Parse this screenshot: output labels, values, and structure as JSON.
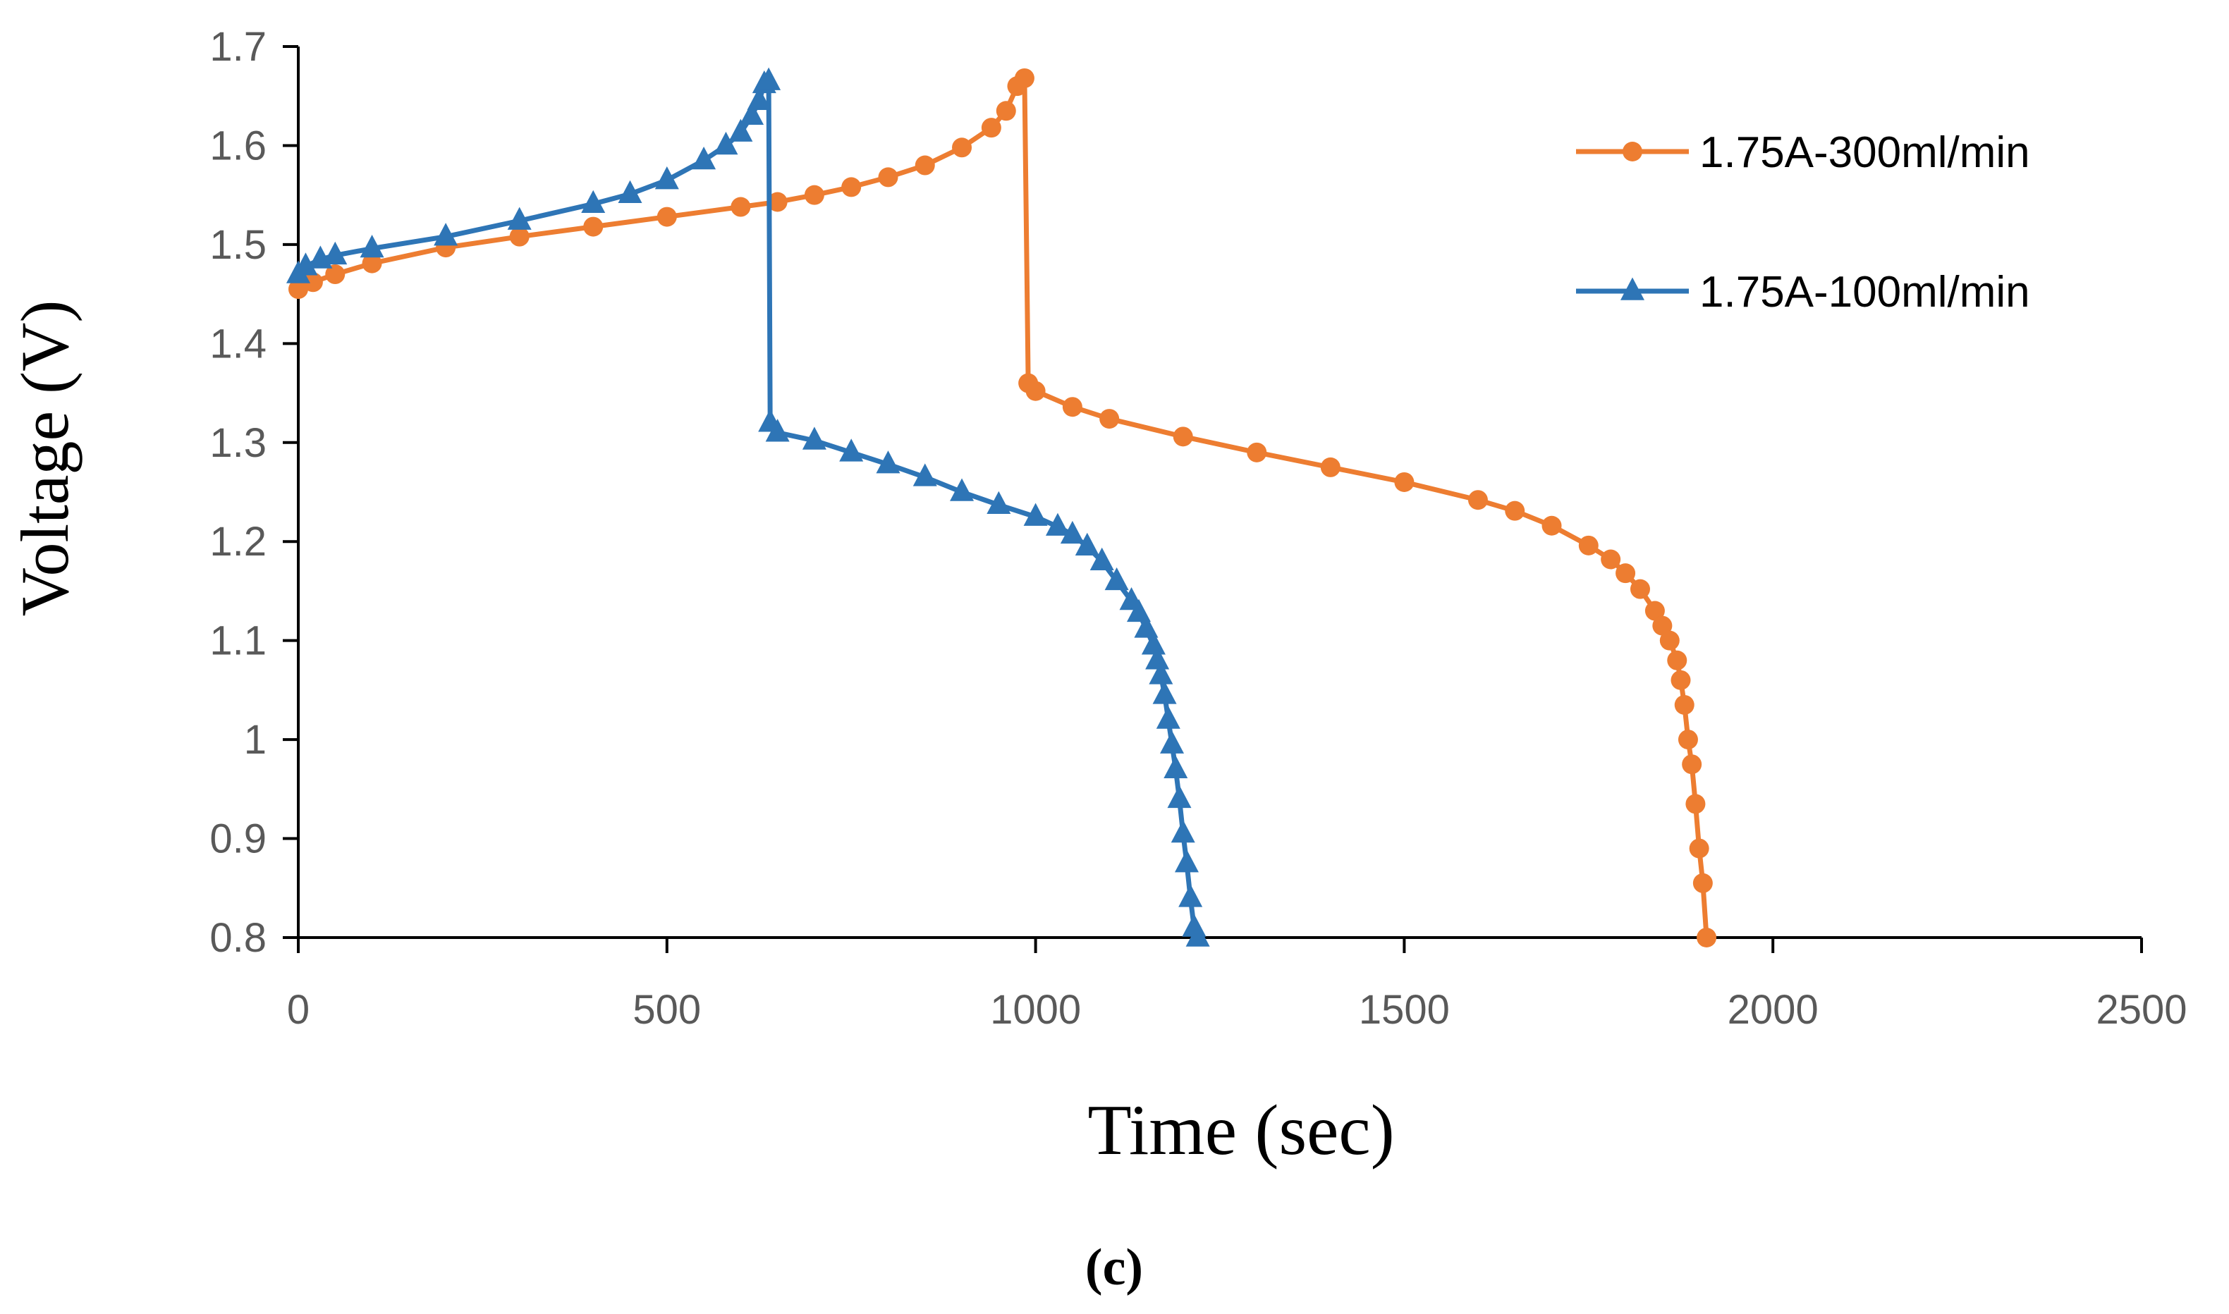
{
  "chart_data": {
    "type": "line",
    "title": "",
    "xlabel": "Time (sec)",
    "ylabel": "Voltage  (V)",
    "caption": "(c)",
    "xlim": [
      0,
      2500
    ],
    "ylim": [
      0.8,
      1.7
    ],
    "xticks": [
      0,
      500,
      1000,
      1500,
      2000,
      2500
    ],
    "xtick_labels": [
      "0",
      "500",
      "1000",
      "1500",
      "2000",
      "2500"
    ],
    "yticks": [
      0.8,
      0.9,
      1.0,
      1.1,
      1.2,
      1.3,
      1.4,
      1.5,
      1.6,
      1.7
    ],
    "ytick_labels": [
      "0.8",
      "0.9",
      "1",
      "1.1",
      "1.2",
      "1.3",
      "1.4",
      "1.5",
      "1.6",
      "1.7"
    ],
    "grid": false,
    "legend_position": "top-right",
    "series": [
      {
        "name": "1.75A-300ml/min",
        "color": "#ED7D31",
        "marker": "circle",
        "x": [
          0,
          20,
          50,
          100,
          200,
          300,
          400,
          500,
          600,
          650,
          700,
          750,
          800,
          850,
          900,
          940,
          960,
          975,
          985,
          990,
          1000,
          1050,
          1100,
          1200,
          1300,
          1400,
          1500,
          1600,
          1650,
          1700,
          1750,
          1780,
          1800,
          1820,
          1840,
          1850,
          1860,
          1870,
          1875,
          1880,
          1885,
          1890,
          1895,
          1900,
          1905,
          1910
        ],
        "y": [
          1.455,
          1.462,
          1.47,
          1.481,
          1.497,
          1.508,
          1.518,
          1.528,
          1.538,
          1.543,
          1.55,
          1.558,
          1.568,
          1.58,
          1.598,
          1.618,
          1.635,
          1.66,
          1.668,
          1.36,
          1.352,
          1.336,
          1.324,
          1.306,
          1.29,
          1.275,
          1.26,
          1.242,
          1.231,
          1.216,
          1.196,
          1.182,
          1.168,
          1.152,
          1.13,
          1.115,
          1.1,
          1.08,
          1.06,
          1.035,
          1.0,
          0.975,
          0.935,
          0.89,
          0.855,
          0.8
        ]
      },
      {
        "name": "1.75A-100ml/min",
        "color": "#2E75B6",
        "marker": "triangle",
        "x": [
          0,
          10,
          30,
          50,
          100,
          200,
          300,
          400,
          450,
          500,
          550,
          580,
          600,
          615,
          625,
          632,
          638,
          640,
          650,
          700,
          750,
          800,
          850,
          900,
          950,
          1000,
          1030,
          1050,
          1070,
          1090,
          1110,
          1130,
          1140,
          1150,
          1160,
          1165,
          1170,
          1175,
          1180,
          1185,
          1190,
          1195,
          1200,
          1205,
          1210,
          1215,
          1220
        ],
        "y": [
          1.47,
          1.478,
          1.485,
          1.489,
          1.496,
          1.508,
          1.524,
          1.541,
          1.551,
          1.565,
          1.585,
          1.6,
          1.613,
          1.63,
          1.645,
          1.662,
          1.665,
          1.32,
          1.31,
          1.302,
          1.29,
          1.278,
          1.265,
          1.25,
          1.237,
          1.225,
          1.215,
          1.207,
          1.195,
          1.18,
          1.16,
          1.14,
          1.128,
          1.112,
          1.095,
          1.08,
          1.065,
          1.045,
          1.02,
          0.995,
          0.97,
          0.94,
          0.905,
          0.875,
          0.84,
          0.81,
          0.8
        ]
      }
    ]
  }
}
